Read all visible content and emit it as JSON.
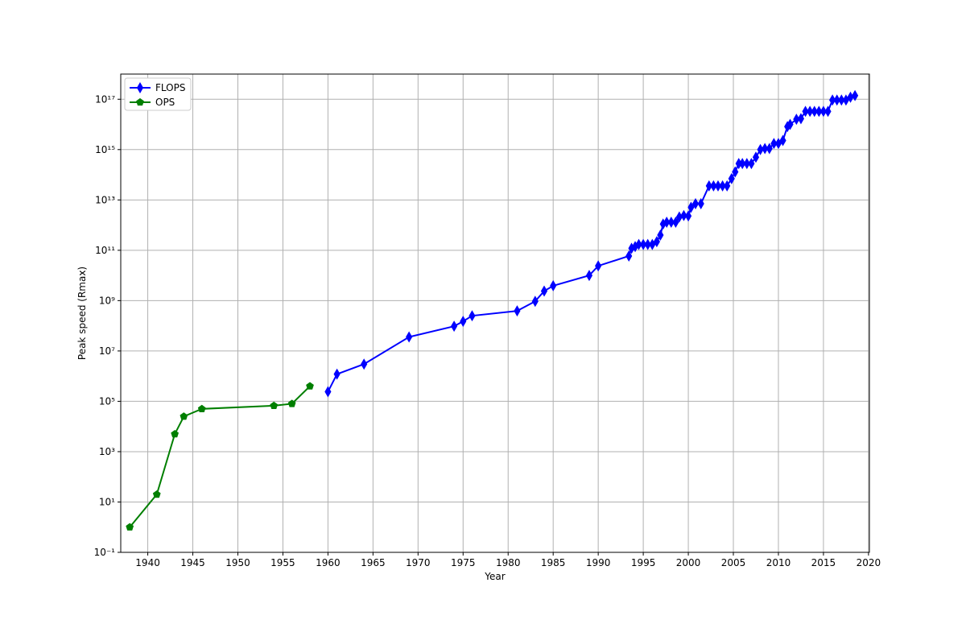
{
  "chart_data": {
    "type": "line",
    "x_label": "Year",
    "y_label": "Peak speed (Rmax)",
    "yscale": "log",
    "grid": true,
    "legend": "upper left",
    "xlim": [
      1937,
      2020.1
    ],
    "ylim": [
      0.1,
      1e+18
    ],
    "xticks": [
      1940,
      1945,
      1950,
      1955,
      1960,
      1965,
      1970,
      1975,
      1980,
      1985,
      1990,
      1995,
      2000,
      2005,
      2010,
      2015,
      2020
    ],
    "yticks": [
      {
        "value": 0.1,
        "label": "10⁻¹"
      },
      {
        "value": 10,
        "label": "10¹"
      },
      {
        "value": 1000,
        "label": "10³"
      },
      {
        "value": 100000,
        "label": "10⁵"
      },
      {
        "value": 10000000,
        "label": "10⁷"
      },
      {
        "value": 1000000000,
        "label": "10⁹"
      },
      {
        "value": 100000000000,
        "label": "10¹¹"
      },
      {
        "value": 10000000000000,
        "label": "10¹³"
      },
      {
        "value": 1000000000000000,
        "label": "10¹⁵"
      },
      {
        "value": 100000000000000000,
        "label": "10¹⁷"
      }
    ],
    "series": [
      {
        "name": "FLOPS",
        "color": "#0000ff",
        "marker": "diamond",
        "x": [
          1960,
          1961,
          1964,
          1969,
          1974,
          1975,
          1976,
          1981,
          1983,
          1984,
          1985,
          1989,
          1990,
          1993.4,
          1993.7,
          1994.1,
          1994.5,
          1995,
          1995.5,
          1996,
          1996.5,
          1996.9,
          1997.2,
          1997.6,
          1998.1,
          1998.6,
          1999,
          1999.5,
          2000,
          2000.3,
          2000.8,
          2001.4,
          2002.3,
          2002.8,
          2003.3,
          2003.8,
          2004.3,
          2004.8,
          2005.2,
          2005.6,
          2006,
          2006.5,
          2007,
          2007.5,
          2008,
          2008.5,
          2009,
          2009.5,
          2010,
          2010.5,
          2011,
          2011.3,
          2012,
          2012.5,
          2013,
          2013.5,
          2014,
          2014.5,
          2015,
          2015.5,
          2016,
          2016.5,
          2017,
          2017.5,
          2018,
          2018.5
        ],
        "values": [
          240000,
          1200000,
          3000000,
          36000000,
          96000000,
          150000000,
          250000000,
          390000000,
          940000000,
          2400000000,
          3900000000,
          10000000000,
          24000000000,
          59000000000,
          120000000000,
          140000000000,
          170000000000,
          170000000000,
          170000000000,
          170000000000,
          220000000000,
          400000000000,
          1100000000000,
          1300000000000,
          1300000000000,
          1300000000000,
          2100000000000,
          2400000000000,
          2300000000000,
          5100000000000,
          7100000000000,
          7100000000000,
          36000000000000,
          36000000000000,
          36000000000000,
          36000000000000,
          36000000000000,
          70000000000000,
          130000000000000,
          280000000000000,
          280000000000000,
          280000000000000,
          280000000000000,
          500000000000000,
          1000000000000000,
          1100000000000000,
          1100000000000000,
          1750000000000000,
          1750000000000000,
          2300000000000000,
          8200000000000000,
          10000000000000000,
          16000000000000000,
          17000000000000000,
          33000000000000000,
          33000000000000000,
          33000000000000000,
          33000000000000000,
          33000000000000000,
          33000000000000000,
          93000000000000000,
          93000000000000000,
          93000000000000000,
          93000000000000000,
          120000000000000000,
          140000000000000000
        ]
      },
      {
        "name": "OPS",
        "color": "#007f00",
        "marker": "pentagon",
        "x": [
          1938,
          1941,
          1943,
          1944,
          1946,
          1954,
          1956,
          1958
        ],
        "values": [
          1,
          20,
          5000,
          25000,
          50000,
          67000,
          80000,
          400000
        ]
      }
    ]
  }
}
